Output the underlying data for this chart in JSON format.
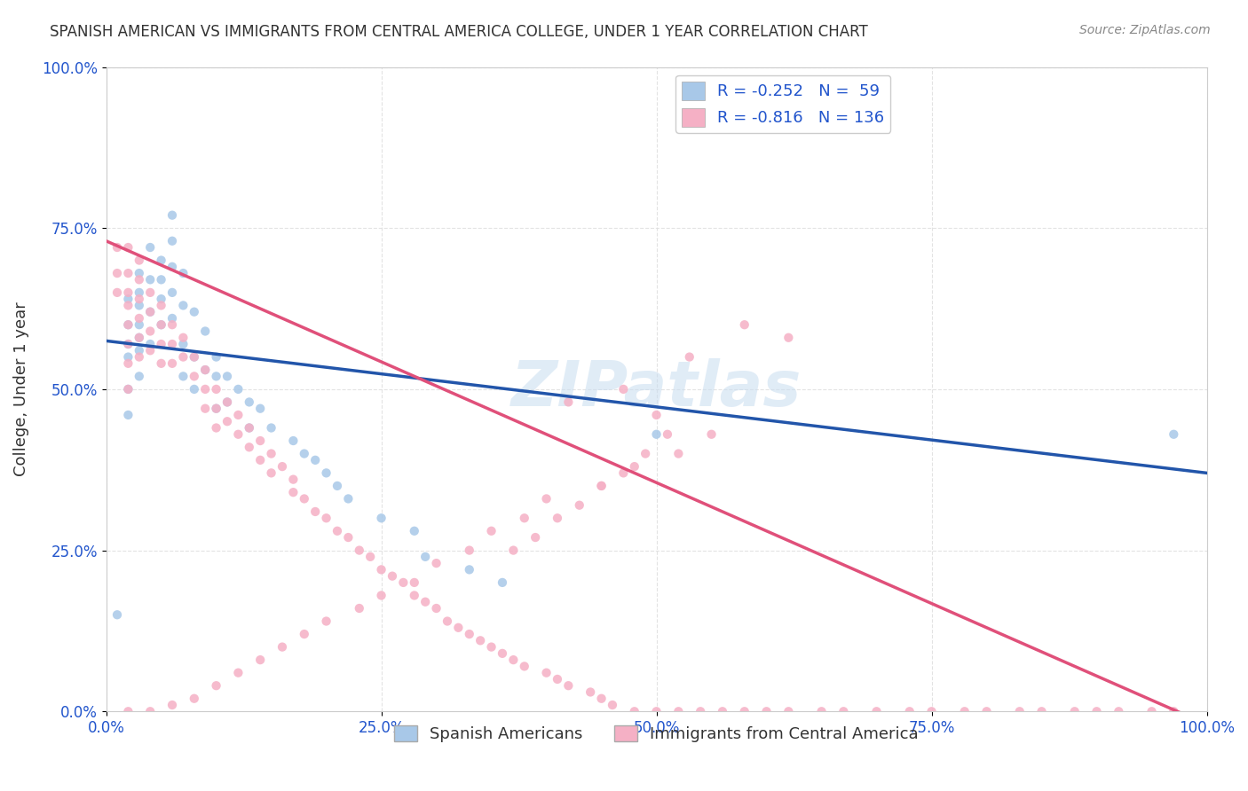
{
  "title": "SPANISH AMERICAN VS IMMIGRANTS FROM CENTRAL AMERICA COLLEGE, UNDER 1 YEAR CORRELATION CHART",
  "source": "Source: ZipAtlas.com",
  "xlabel_bottom": "",
  "ylabel": "College, Under 1 year",
  "x_tick_labels": [
    "0.0%",
    "100.0%"
  ],
  "y_tick_labels": [
    "0.0%",
    "25.0%",
    "50.0%",
    "75.0%",
    "100.0%"
  ],
  "x_ticks": [
    0.0,
    1.0
  ],
  "y_ticks": [
    0.0,
    0.25,
    0.5,
    0.75,
    1.0
  ],
  "legend_entries": [
    {
      "label": "R = -0.252   N =  59",
      "color": "#a8c4e0",
      "line_color": "#3a7abf"
    },
    {
      "label": "R = -0.816   N = 136",
      "color": "#f5b8c8",
      "line_color": "#e05080"
    }
  ],
  "legend_bottom_labels": [
    "Spanish Americans",
    "Immigrants from Central America"
  ],
  "blue_scatter_x": [
    0.01,
    0.02,
    0.02,
    0.02,
    0.02,
    0.02,
    0.02,
    0.03,
    0.03,
    0.03,
    0.03,
    0.03,
    0.03,
    0.03,
    0.04,
    0.04,
    0.04,
    0.04,
    0.05,
    0.05,
    0.05,
    0.05,
    0.06,
    0.06,
    0.06,
    0.06,
    0.06,
    0.07,
    0.07,
    0.07,
    0.07,
    0.08,
    0.08,
    0.08,
    0.09,
    0.09,
    0.1,
    0.1,
    0.1,
    0.11,
    0.11,
    0.12,
    0.13,
    0.13,
    0.14,
    0.15,
    0.17,
    0.18,
    0.19,
    0.2,
    0.21,
    0.22,
    0.25,
    0.28,
    0.29,
    0.33,
    0.36,
    0.5,
    0.97
  ],
  "blue_scatter_y": [
    0.15,
    0.64,
    0.6,
    0.57,
    0.55,
    0.5,
    0.46,
    0.68,
    0.65,
    0.63,
    0.6,
    0.58,
    0.56,
    0.52,
    0.72,
    0.67,
    0.62,
    0.57,
    0.7,
    0.67,
    0.64,
    0.6,
    0.77,
    0.73,
    0.69,
    0.65,
    0.61,
    0.68,
    0.63,
    0.57,
    0.52,
    0.62,
    0.55,
    0.5,
    0.59,
    0.53,
    0.55,
    0.52,
    0.47,
    0.52,
    0.48,
    0.5,
    0.48,
    0.44,
    0.47,
    0.44,
    0.42,
    0.4,
    0.39,
    0.37,
    0.35,
    0.33,
    0.3,
    0.28,
    0.24,
    0.22,
    0.2,
    0.43,
    0.43
  ],
  "pink_scatter_x": [
    0.01,
    0.01,
    0.01,
    0.02,
    0.02,
    0.02,
    0.02,
    0.02,
    0.02,
    0.02,
    0.02,
    0.03,
    0.03,
    0.03,
    0.03,
    0.03,
    0.03,
    0.04,
    0.04,
    0.04,
    0.04,
    0.05,
    0.05,
    0.05,
    0.05,
    0.06,
    0.06,
    0.06,
    0.07,
    0.07,
    0.08,
    0.08,
    0.09,
    0.09,
    0.09,
    0.1,
    0.1,
    0.1,
    0.11,
    0.11,
    0.12,
    0.12,
    0.13,
    0.13,
    0.14,
    0.14,
    0.15,
    0.15,
    0.16,
    0.17,
    0.17,
    0.18,
    0.19,
    0.2,
    0.21,
    0.22,
    0.23,
    0.24,
    0.25,
    0.26,
    0.27,
    0.28,
    0.29,
    0.3,
    0.31,
    0.32,
    0.33,
    0.34,
    0.35,
    0.36,
    0.37,
    0.38,
    0.4,
    0.41,
    0.42,
    0.44,
    0.45,
    0.46,
    0.48,
    0.5,
    0.52,
    0.54,
    0.56,
    0.58,
    0.6,
    0.62,
    0.65,
    0.67,
    0.7,
    0.73,
    0.75,
    0.78,
    0.8,
    0.83,
    0.85,
    0.88,
    0.9,
    0.92,
    0.95,
    0.97,
    0.58,
    0.62,
    0.53,
    0.47,
    0.42,
    0.5,
    0.55,
    0.52,
    0.48,
    0.45,
    0.4,
    0.38,
    0.35,
    0.33,
    0.3,
    0.28,
    0.25,
    0.23,
    0.2,
    0.18,
    0.16,
    0.14,
    0.12,
    0.1,
    0.08,
    0.06,
    0.04,
    0.02,
    0.51,
    0.49,
    0.47,
    0.45,
    0.43,
    0.41,
    0.39,
    0.37
  ],
  "pink_scatter_y": [
    0.72,
    0.68,
    0.65,
    0.72,
    0.68,
    0.65,
    0.63,
    0.6,
    0.57,
    0.54,
    0.5,
    0.7,
    0.67,
    0.64,
    0.61,
    0.58,
    0.55,
    0.65,
    0.62,
    0.59,
    0.56,
    0.63,
    0.6,
    0.57,
    0.54,
    0.6,
    0.57,
    0.54,
    0.58,
    0.55,
    0.55,
    0.52,
    0.53,
    0.5,
    0.47,
    0.5,
    0.47,
    0.44,
    0.48,
    0.45,
    0.46,
    0.43,
    0.44,
    0.41,
    0.42,
    0.39,
    0.4,
    0.37,
    0.38,
    0.36,
    0.34,
    0.33,
    0.31,
    0.3,
    0.28,
    0.27,
    0.25,
    0.24,
    0.22,
    0.21,
    0.2,
    0.18,
    0.17,
    0.16,
    0.14,
    0.13,
    0.12,
    0.11,
    0.1,
    0.09,
    0.08,
    0.07,
    0.06,
    0.05,
    0.04,
    0.03,
    0.02,
    0.01,
    0.0,
    0.0,
    0.0,
    0.0,
    0.0,
    0.0,
    0.0,
    0.0,
    0.0,
    0.0,
    0.0,
    0.0,
    0.0,
    0.0,
    0.0,
    0.0,
    0.0,
    0.0,
    0.0,
    0.0,
    0.0,
    0.0,
    0.6,
    0.58,
    0.55,
    0.5,
    0.48,
    0.46,
    0.43,
    0.4,
    0.38,
    0.35,
    0.33,
    0.3,
    0.28,
    0.25,
    0.23,
    0.2,
    0.18,
    0.16,
    0.14,
    0.12,
    0.1,
    0.08,
    0.06,
    0.04,
    0.02,
    0.01,
    0.0,
    0.0,
    0.43,
    0.4,
    0.37,
    0.35,
    0.32,
    0.3,
    0.27,
    0.25
  ],
  "blue_line": {
    "x": [
      0.0,
      1.0
    ],
    "y": [
      0.575,
      0.37
    ]
  },
  "pink_line": {
    "x": [
      0.0,
      1.0
    ],
    "y": [
      0.73,
      -0.02
    ]
  },
  "blue_line_color": "#2255aa",
  "pink_line_color": "#e0507a",
  "blue_scatter_color": "#a8c8e8",
  "pink_scatter_color": "#f5b0c5",
  "grid_color": "#dddddd",
  "watermark": "ZIPatlas",
  "title_color": "#333333",
  "axis_label_color": "#2255cc",
  "background_color": "#ffffff"
}
